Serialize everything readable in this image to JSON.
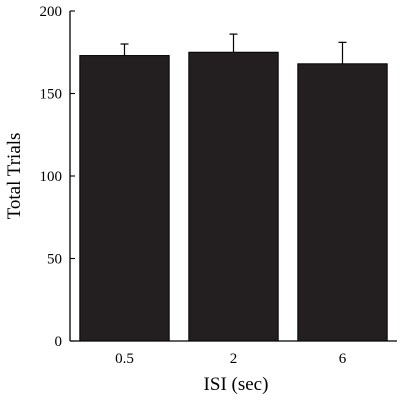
{
  "chart_data": {
    "type": "bar",
    "title": "",
    "xlabel": "ISI (sec)",
    "ylabel": "Total Trials",
    "categories": [
      "0.5",
      "2",
      "6"
    ],
    "values": [
      173,
      175,
      168
    ],
    "errors": [
      7,
      11,
      13
    ],
    "ylim": [
      0,
      200
    ],
    "yticks": [
      0,
      50,
      100,
      150,
      200
    ],
    "bar_color": "#231f20",
    "grid": false,
    "legend": "none"
  }
}
